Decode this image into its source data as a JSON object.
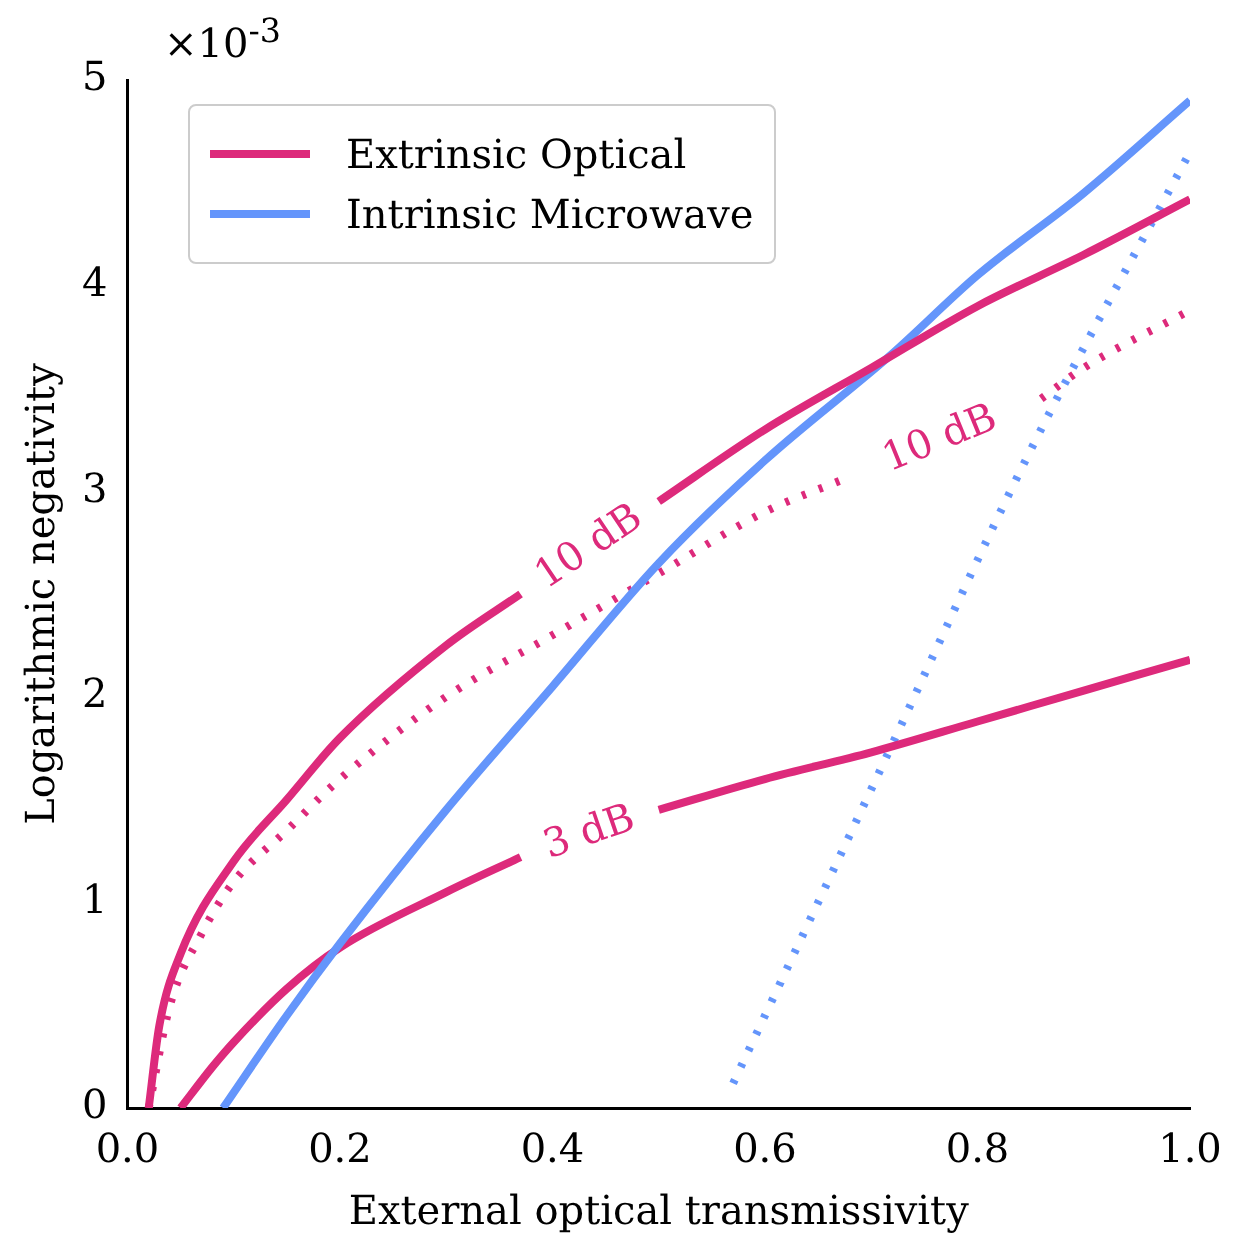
{
  "chart_data": {
    "type": "line",
    "xlabel": "External optical transmissivity",
    "ylabel": "Logarithmic negativity",
    "annotations": [
      "×10$^{-3}$",
      "10 dB",
      "10 dB",
      "3 dB"
    ],
    "xlim": [
      0,
      1
    ],
    "xticks": [
      {
        "value": 0,
        "label": "0.0"
      },
      0.2,
      0.4,
      0.6,
      0.8,
      {
        "value": 1,
        "label": "1.0"
      }
    ],
    "ylim": [
      0,
      5
    ],
    "yticks": [
      0,
      1,
      2,
      3,
      4,
      5
    ],
    "grid": false,
    "legend": "top left",
    "marker": "none",
    "series": [
      {
        "name": "Extrinsic Optical",
        "color": "#dd2a7b",
        "line_style": "solid",
        "x": [
          0.02,
          0.03,
          0.05,
          0.1,
          0.15,
          0.2,
          0.3,
          0.37,
          0.43,
          0.5,
          0.6,
          0.7,
          0.8,
          0.9,
          1.0
        ],
        "values": [
          0,
          0.4,
          0.75,
          1.2,
          1.5,
          1.8,
          2.25,
          2.5,
          null,
          2.95,
          3.3,
          3.6,
          3.9,
          4.15,
          4.42
        ]
      },
      {
        "name": "Intrinsic Microwave",
        "color": "#6495fb",
        "line_style": "solid",
        "x": [
          0.09,
          0.15,
          0.2,
          0.3,
          0.4,
          0.5,
          0.6,
          0.72,
          0.8,
          0.9,
          1.0
        ],
        "values": [
          0,
          0.45,
          0.8,
          1.45,
          2.05,
          2.65,
          3.15,
          3.67,
          4.05,
          4.45,
          4.9
        ]
      },
      {
        "color": "#dd2a7b",
        "line_style": "dotted",
        "x": [
          0.02,
          0.04,
          0.07,
          0.1,
          0.15,
          0.2,
          0.3,
          0.4,
          0.5,
          0.6,
          0.67,
          0.76,
          0.86,
          0.9,
          1.0
        ],
        "values": [
          0,
          0.5,
          0.85,
          1.1,
          1.35,
          1.6,
          2.0,
          2.3,
          2.6,
          2.9,
          3.05,
          null,
          3.45,
          3.6,
          3.88
        ]
      },
      {
        "color": "#dd2a7b",
        "line_style": "solid",
        "x": [
          0.05,
          0.08,
          0.1,
          0.15,
          0.2,
          0.3,
          0.37,
          0.43,
          0.5,
          0.6,
          0.7,
          0.8,
          0.9,
          1.0
        ],
        "values": [
          0,
          0.2,
          0.32,
          0.58,
          0.78,
          1.05,
          1.22,
          null,
          1.45,
          1.6,
          1.73,
          1.88,
          2.03,
          2.18
        ]
      },
      {
        "color": "#6495fb",
        "line_style": "dotted",
        "x": [
          0.57,
          0.7,
          0.85,
          1.0
        ],
        "values": [
          0.12,
          1.55,
          3.2,
          4.65
        ]
      }
    ]
  }
}
